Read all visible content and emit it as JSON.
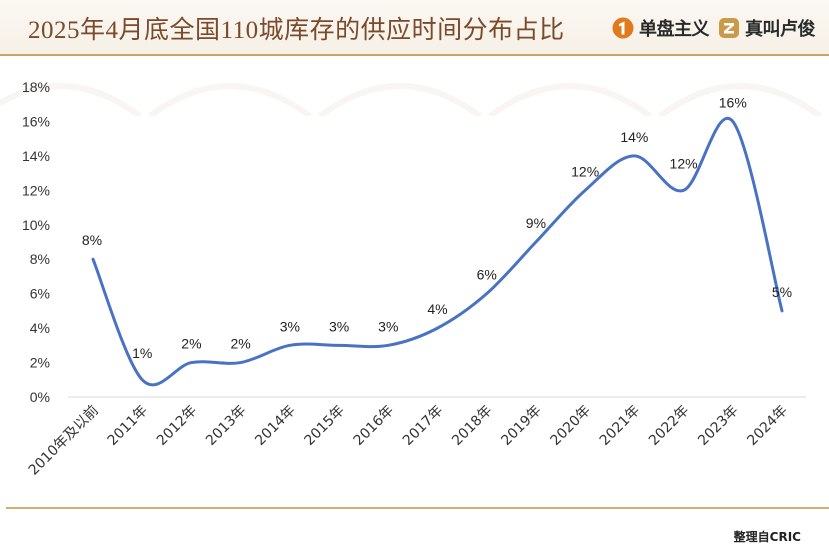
{
  "header": {
    "title": "2025年4月底全国110城库存的供应时间分布占比",
    "brands": [
      {
        "label": "单盘主义",
        "icon": "brand-one-icon"
      },
      {
        "label": "真叫卢俊",
        "icon": "brand-z-icon"
      }
    ]
  },
  "footer": {
    "source": "整理自CRIC"
  },
  "colors": {
    "title": "#7a4a2a",
    "accent_line": "#c9a46a",
    "series": "#4a72c4",
    "brand_orange": "#e07a1f",
    "brand_gold": "#c89a4a"
  },
  "chart_data": {
    "type": "line",
    "smooth": true,
    "categories": [
      "2010年及以前",
      "2011年",
      "2012年",
      "2013年",
      "2014年",
      "2015年",
      "2016年",
      "2017年",
      "2018年",
      "2019年",
      "2020年",
      "2021年",
      "2022年",
      "2023年",
      "2024年"
    ],
    "series": [
      {
        "values": [
          8,
          1,
          2,
          2,
          3,
          3,
          3,
          4,
          6,
          9,
          12,
          14,
          12,
          16,
          5
        ],
        "labels": [
          "8%",
          "1%",
          "2%",
          "2%",
          "3%",
          "3%",
          "3%",
          "4%",
          "6%",
          "9%",
          "12%",
          "14%",
          "12%",
          "16%",
          "5%"
        ]
      }
    ],
    "yticks": [
      "0%",
      "2%",
      "4%",
      "6%",
      "8%",
      "10%",
      "12%",
      "14%",
      "16%",
      "18%"
    ],
    "ylim": [
      0,
      18
    ],
    "grid": false
  }
}
